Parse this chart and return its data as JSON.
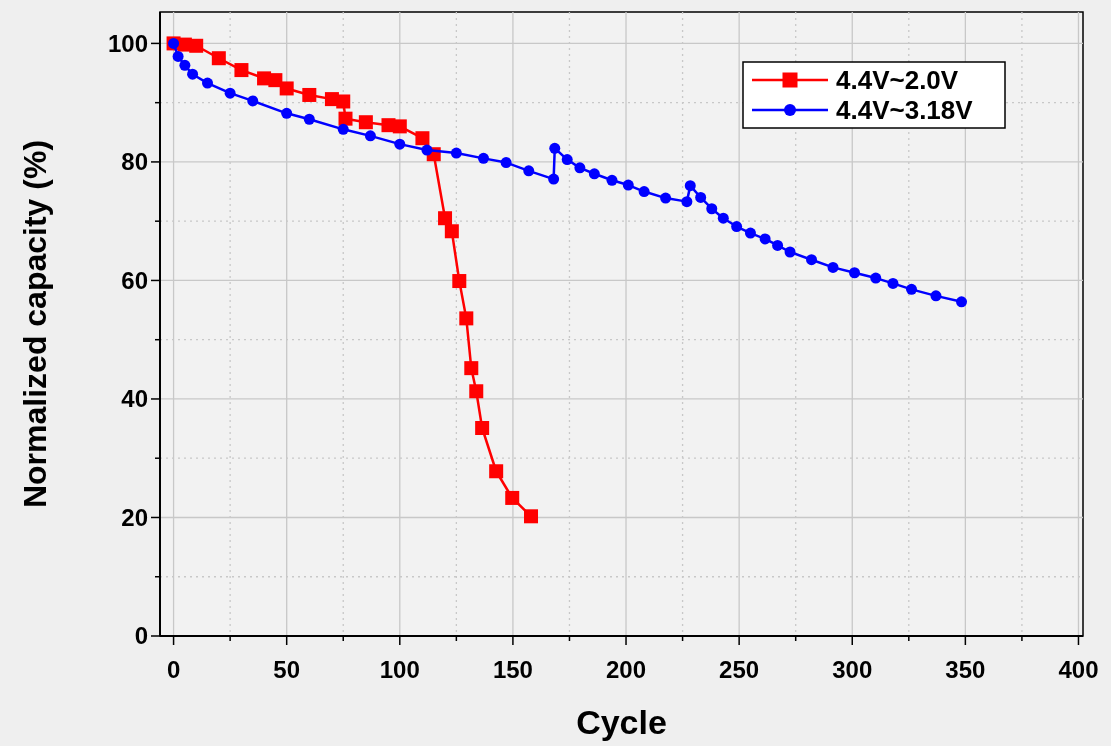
{
  "chart_data": {
    "type": "line",
    "xlabel": "Cycle",
    "ylabel": "Normalized capacity (%)",
    "xlim": [
      -6,
      402
    ],
    "ylim": [
      0,
      105.3
    ],
    "xticks": [
      0,
      {
        "value": 25,
        "label": null
      },
      50,
      {
        "value": 75,
        "label": null
      },
      100,
      {
        "value": 125,
        "label": null
      },
      150,
      {
        "value": 175,
        "label": null
      },
      200,
      {
        "value": 225,
        "label": null
      },
      250,
      {
        "value": 275,
        "label": null
      },
      300,
      {
        "value": 325,
        "label": null
      },
      350,
      {
        "value": 375,
        "label": null
      },
      400
    ],
    "yticks": [
      0,
      {
        "value": 10,
        "label": null
      },
      20,
      {
        "value": 30,
        "label": null
      },
      40,
      {
        "value": 50,
        "label": null
      },
      60,
      {
        "value": 70,
        "label": null
      },
      80,
      {
        "value": 90,
        "label": null
      },
      100
    ],
    "grid": true,
    "legend": "top right",
    "line_style": "solid",
    "series": [
      {
        "name": "4.4V~2.0V",
        "color": "#ff0000",
        "marker": "square",
        "x": [
          0,
          5,
          10,
          20,
          30,
          40,
          45,
          50,
          60,
          70,
          75,
          76,
          85,
          95,
          100,
          110,
          115,
          120,
          123,
          126.3,
          129.4,
          131.6,
          133.8,
          136.4,
          142.6,
          149.7,
          158
        ],
        "values": [
          100,
          99.8,
          99.6,
          97.5,
          95.5,
          94.1,
          93.8,
          92.4,
          91.3,
          90.6,
          90.2,
          87.3,
          86.7,
          86.2,
          86,
          84,
          81.3,
          70.5,
          68.3,
          59.9,
          53.6,
          45.2,
          41.3,
          35.1,
          27.8,
          23.3,
          20.2
        ]
      },
      {
        "name": "4.4V~3.18V",
        "color": "#0000ff",
        "marker": "circle",
        "x": [
          0,
          2,
          5,
          8.4,
          15,
          25,
          35,
          50,
          60,
          75,
          87,
          100,
          112,
          125,
          137,
          147,
          157,
          168,
          168.5,
          174,
          179.6,
          186,
          193.8,
          201,
          208,
          217.5,
          226.9,
          228.4,
          233,
          237.9,
          243,
          248.9,
          255,
          261.5,
          267,
          272.5,
          282,
          291.5,
          301,
          310.4,
          318,
          326.2,
          337,
          348.3
        ],
        "values": [
          100,
          97.8,
          96.3,
          94.8,
          93.3,
          91.6,
          90.3,
          88.2,
          87.2,
          85.5,
          84.4,
          83,
          82,
          81.5,
          80.6,
          79.9,
          78.5,
          77.1,
          82.3,
          80.4,
          79,
          78,
          76.9,
          76.1,
          75,
          73.9,
          73.3,
          76,
          74,
          72.1,
          70.5,
          69.1,
          68,
          67,
          65.9,
          64.8,
          63.5,
          62.2,
          61.3,
          60.4,
          59.5,
          58.5,
          57.4,
          56.4
        ]
      }
    ]
  }
}
